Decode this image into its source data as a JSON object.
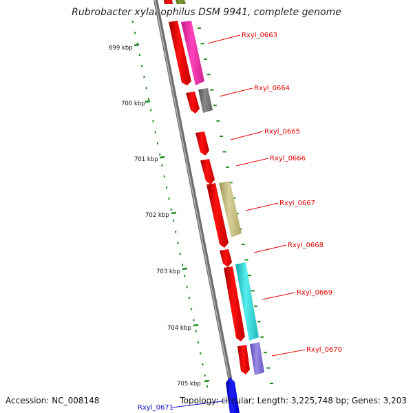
{
  "title": "Rubrobacter xylanophilus DSM 9941, complete genome",
  "accession_text": "Accession: NC_008148",
  "topology_text": "Topology: circular; Length: 3,225,748 bp; Genes: 3,203",
  "kbp_ticks": [
    {
      "label": "699 kbp"
    },
    {
      "label": "700 kbp"
    },
    {
      "label": "701 kbp"
    },
    {
      "label": "702 kbp"
    },
    {
      "label": "703 kbp"
    },
    {
      "label": "704 kbp"
    },
    {
      "label": "705 kbp"
    }
  ],
  "genes": [
    {
      "id": "Rxyl_0663",
      "label": "Rxyl_0663",
      "strand": "forward"
    },
    {
      "id": "Rxyl_0664",
      "label": "Rxyl_0664",
      "strand": "forward"
    },
    {
      "id": "Rxyl_0665",
      "label": "Rxyl_0665",
      "strand": "forward"
    },
    {
      "id": "Rxyl_0666",
      "label": "Rxyl_0666",
      "strand": "forward"
    },
    {
      "id": "Rxyl_0667",
      "label": "Rxyl_0667",
      "strand": "forward"
    },
    {
      "id": "Rxyl_0668",
      "label": "Rxyl_0668",
      "strand": "forward"
    },
    {
      "id": "Rxyl_0669",
      "label": "Rxyl_0669",
      "strand": "forward"
    },
    {
      "id": "Rxyl_0670",
      "label": "Rxyl_0670",
      "strand": "forward"
    },
    {
      "id": "Rxyl_0671",
      "label": "Rxyl_0671",
      "strand": "reverse"
    }
  ],
  "colors": {
    "backbone": "#8c8c8c",
    "cds_forward": "#ff0000",
    "cds_reverse": "#0000ee",
    "feature_olive": "#6b8e23",
    "feature_magenta": "#ff33aa",
    "feature_gray": "#777777",
    "feature_khaki": "#c8c080",
    "feature_cyan": "#33dddd",
    "feature_purple": "#7f6fd6",
    "tick_green": "#1a8a1a",
    "label_forward": "#e00000",
    "label_reverse": "#1010cc"
  }
}
